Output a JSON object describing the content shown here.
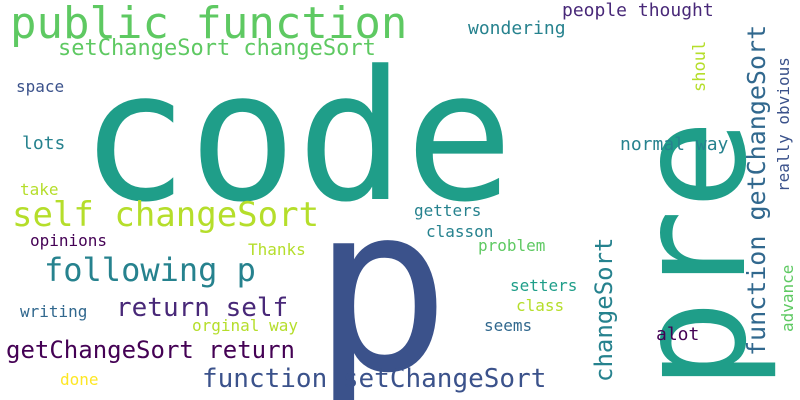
{
  "words": {
    "code": "code",
    "p": "p",
    "pre": "pre",
    "public_function": "public function",
    "setChangeSort_changeSort": "setChangeSort changeSort",
    "self_changeSort": "self changeSort",
    "following_p": "following p",
    "return_self": "return self",
    "getChangeSort_return": "getChangeSort return",
    "function_setChangeSort": "function setChangeSort",
    "function_getChangeSort": "function getChangeSort",
    "changeSort": "changeSort",
    "people_thought": "people thought",
    "wondering": "wondering",
    "shoul": "shoul",
    "really_obvious": "really obvious",
    "normal_way": "normal way",
    "space": "space",
    "lots": "lots",
    "take": "take",
    "opinions": "opinions",
    "getters": "getters",
    "classon": "classon",
    "Thanks": "Thanks",
    "problem": "problem",
    "setters": "setters",
    "class": "class",
    "advance": "advance",
    "writing": "writing",
    "orginal_way": "orginal way",
    "seems": "seems",
    "alot": "alot",
    "done": "done"
  },
  "colors": {
    "background": "#ffffff",
    "teal": "#1f9e89",
    "green": "#5ec962",
    "lime": "#b5de2b",
    "yellow": "#fde725",
    "navy": "#3b528b",
    "indigo": "#31688e",
    "purple": "#440154",
    "violet": "#482878",
    "cyan": "#26828e"
  }
}
